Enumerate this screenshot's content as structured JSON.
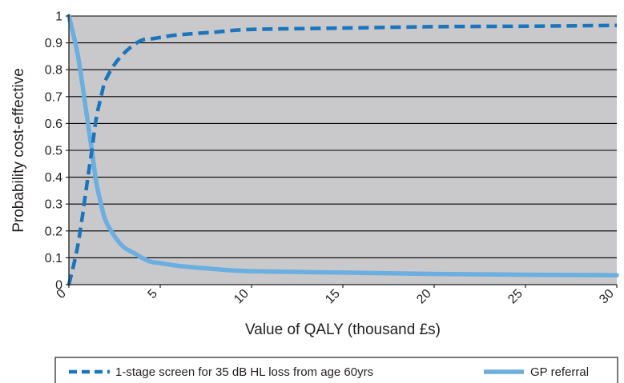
{
  "colors": {
    "plot_background": "#c9c8ca",
    "gridline": "#000000",
    "series_line": "#4a9fdb"
  },
  "chart_data": {
    "type": "line",
    "title": "",
    "xlabel": "Value of QALY (thousand £s)",
    "ylabel": "Probability cost-effective",
    "xlim": [
      0,
      30
    ],
    "ylim": [
      0,
      1
    ],
    "x_ticks": [
      0,
      5,
      10,
      15,
      20,
      25,
      30
    ],
    "y_ticks": [
      0,
      0.1,
      0.2,
      0.3,
      0.4,
      0.5,
      0.6,
      0.7,
      0.8,
      0.9,
      1
    ],
    "x_tick_labels": [
      "0",
      "5",
      "10",
      "15",
      "20",
      "25",
      "30"
    ],
    "y_tick_labels": [
      "0",
      "0.1",
      "0.2",
      "0.3",
      "0.4",
      "0.5",
      "0.6",
      "0.7",
      "0.8",
      "0.9",
      "1"
    ],
    "grid": "horizontal",
    "legend_position": "bottom",
    "series": [
      {
        "name": "1-stage screen for 35 dB HL loss from age 60yrs",
        "style": "dashed",
        "color": "#1a75bc",
        "x": [
          0,
          0.5,
          1,
          1.3,
          1.5,
          1.8,
          2,
          2.5,
          3,
          3.5,
          4,
          4.5,
          5,
          6,
          8,
          10,
          15,
          20,
          25,
          30
        ],
        "y": [
          0,
          0.15,
          0.38,
          0.52,
          0.62,
          0.71,
          0.76,
          0.82,
          0.86,
          0.89,
          0.91,
          0.915,
          0.92,
          0.93,
          0.94,
          0.95,
          0.955,
          0.96,
          0.962,
          0.965
        ]
      },
      {
        "name": "GP referral",
        "style": "solid",
        "color": "#6baee0",
        "x": [
          0,
          0.5,
          1,
          1.3,
          1.5,
          1.8,
          2,
          2.5,
          3,
          3.5,
          4,
          4.5,
          5,
          6,
          8,
          10,
          15,
          20,
          25,
          30
        ],
        "y": [
          1,
          0.85,
          0.62,
          0.48,
          0.38,
          0.29,
          0.24,
          0.18,
          0.14,
          0.12,
          0.1,
          0.085,
          0.08,
          0.07,
          0.058,
          0.05,
          0.045,
          0.04,
          0.037,
          0.035
        ]
      }
    ]
  }
}
